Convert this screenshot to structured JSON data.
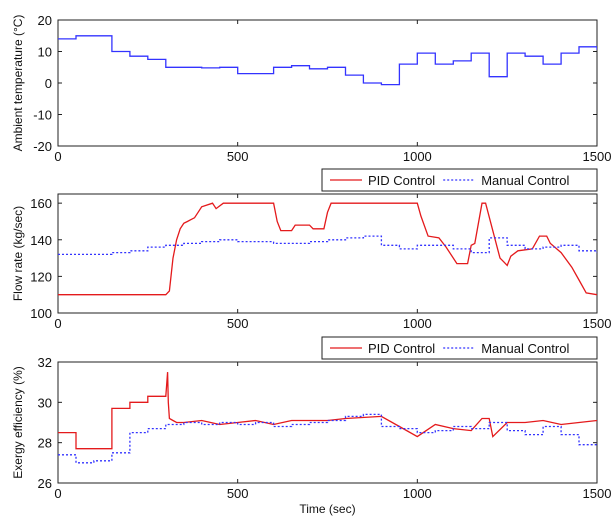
{
  "chart_data": [
    {
      "type": "line",
      "title": "",
      "xlabel": "",
      "ylabel": "Ambient temperature (°C)",
      "xlim": [
        0,
        1500
      ],
      "ylim": [
        -20,
        20
      ],
      "xticks": [
        0,
        500,
        1000,
        1500
      ],
      "yticks": [
        -20,
        -10,
        0,
        10,
        20
      ],
      "grid": false,
      "legend": null,
      "series": [
        {
          "color": "#3333ff",
          "style": "solid",
          "step": true,
          "x": [
            0,
            50,
            150,
            200,
            250,
            300,
            400,
            450,
            500,
            600,
            650,
            700,
            750,
            800,
            850,
            900,
            950,
            1000,
            1050,
            1100,
            1150,
            1200,
            1250,
            1300,
            1350,
            1400,
            1450,
            1500
          ],
          "y": [
            14,
            15,
            10,
            8.5,
            7.5,
            5,
            4.8,
            5,
            3,
            5,
            5.5,
            4.5,
            5,
            2.5,
            0,
            -0.5,
            6,
            9.5,
            6,
            7,
            9.5,
            2,
            9.5,
            8.5,
            6,
            9.5,
            11.5,
            10.5
          ]
        }
      ]
    },
    {
      "type": "line",
      "title": "",
      "xlabel": "",
      "ylabel": "Flow rate (kg/sec)",
      "xlim": [
        0,
        1500
      ],
      "ylim": [
        100,
        165
      ],
      "xticks": [
        0,
        500,
        1000,
        1500
      ],
      "yticks": [
        100,
        120,
        140,
        160
      ],
      "grid": false,
      "legend": "top-right",
      "series": [
        {
          "name": "PID Control",
          "color": "#e41a1c",
          "style": "solid",
          "x": [
            0,
            300,
            310,
            320,
            330,
            340,
            350,
            360,
            370,
            380,
            390,
            400,
            430,
            440,
            460,
            600,
            610,
            620,
            650,
            660,
            700,
            710,
            740,
            750,
            760,
            1000,
            1010,
            1030,
            1060,
            1080,
            1110,
            1140,
            1150,
            1160,
            1180,
            1190,
            1230,
            1240,
            1250,
            1260,
            1280,
            1320,
            1340,
            1360,
            1370,
            1400,
            1430,
            1450,
            1470,
            1500
          ],
          "y": [
            110,
            110,
            112,
            130,
            140,
            146,
            149,
            150,
            151,
            152,
            155,
            158,
            160,
            157,
            160,
            160,
            150,
            145,
            145,
            148,
            148,
            146,
            146,
            155,
            160,
            160,
            153,
            142,
            141,
            136,
            127,
            127,
            137,
            138,
            160,
            160,
            130,
            128,
            126,
            131,
            134,
            135,
            142,
            142,
            138,
            133,
            125,
            118,
            111,
            110
          ]
        },
        {
          "name": "Manual Control",
          "color": "#3333ff",
          "style": "dotted",
          "step": true,
          "x": [
            0,
            150,
            200,
            250,
            300,
            350,
            400,
            450,
            500,
            550,
            600,
            650,
            700,
            750,
            800,
            850,
            900,
            950,
            1000,
            1050,
            1100,
            1150,
            1200,
            1250,
            1300,
            1350,
            1400,
            1450,
            1500
          ],
          "y": [
            132,
            133,
            134,
            136,
            137,
            138,
            139,
            140,
            139,
            139,
            138,
            138,
            139,
            140,
            141,
            142,
            137,
            135,
            137,
            137,
            135,
            133,
            141,
            137,
            135,
            136,
            137,
            134,
            133
          ]
        }
      ]
    },
    {
      "type": "line",
      "title": "",
      "xlabel": "Time (sec)",
      "ylabel": "Exergy efficiency (%)",
      "xlim": [
        0,
        1500
      ],
      "ylim": [
        26,
        32
      ],
      "xticks": [
        0,
        500,
        1000,
        1500
      ],
      "yticks": [
        26,
        28,
        30,
        32
      ],
      "grid": false,
      "legend": "top-right",
      "series": [
        {
          "name": "PID Control",
          "color": "#e41a1c",
          "style": "solid",
          "x": [
            0,
            50,
            50,
            150,
            150,
            200,
            200,
            250,
            250,
            300,
            305,
            307,
            310,
            320,
            330,
            350,
            400,
            450,
            500,
            550,
            600,
            650,
            700,
            750,
            800,
            900,
            950,
            1000,
            1050,
            1100,
            1150,
            1180,
            1200,
            1210,
            1250,
            1300,
            1350,
            1400,
            1450,
            1500
          ],
          "y": [
            28.5,
            28.5,
            27.7,
            27.7,
            29.7,
            29.7,
            30.0,
            30.0,
            30.3,
            30.3,
            31.5,
            30.0,
            29.2,
            29.1,
            29.0,
            29.0,
            29.1,
            28.9,
            29.0,
            29.1,
            28.9,
            29.1,
            29.1,
            29.1,
            29.2,
            29.3,
            28.8,
            28.3,
            28.9,
            28.7,
            28.6,
            29.2,
            29.2,
            28.3,
            29.0,
            29.0,
            29.1,
            28.9,
            29.0,
            29.1
          ]
        },
        {
          "name": "Manual Control",
          "color": "#3333ff",
          "style": "dotted",
          "step": true,
          "x": [
            0,
            50,
            100,
            150,
            200,
            250,
            300,
            350,
            400,
            450,
            500,
            550,
            600,
            650,
            700,
            750,
            800,
            850,
            900,
            950,
            1000,
            1050,
            1100,
            1150,
            1200,
            1250,
            1300,
            1350,
            1400,
            1450,
            1500
          ],
          "y": [
            27.4,
            27.0,
            27.1,
            27.5,
            28.5,
            28.7,
            28.9,
            29.0,
            28.9,
            29.0,
            28.9,
            29.0,
            28.8,
            28.9,
            29.0,
            29.1,
            29.3,
            29.4,
            28.8,
            28.7,
            28.5,
            28.6,
            28.8,
            28.7,
            29.0,
            28.6,
            28.4,
            28.8,
            28.4,
            27.9,
            28.0
          ]
        }
      ]
    }
  ]
}
